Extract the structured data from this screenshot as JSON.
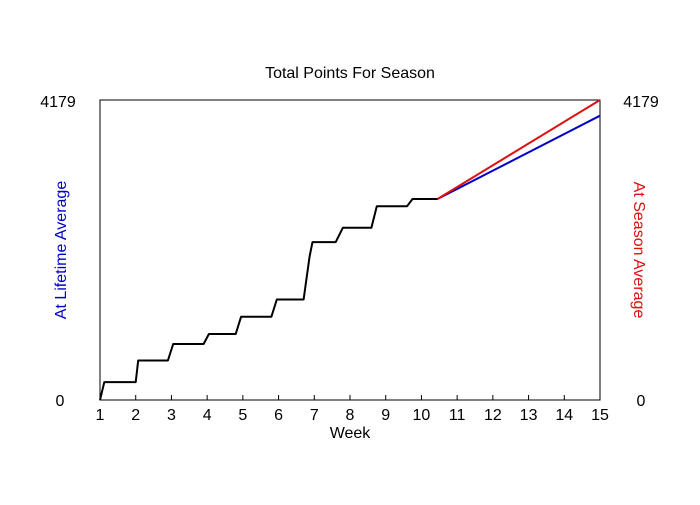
{
  "chart_data": {
    "type": "line",
    "title": "Total Points For Season",
    "xlabel": "Week",
    "ylabel_left": "At Lifetime Average",
    "ylabel_right": "At Season Average",
    "ylim": [
      0,
      4179
    ],
    "xlim": [
      1,
      15
    ],
    "x_ticks": [
      "1",
      "2",
      "3",
      "4",
      "5",
      "6",
      "7",
      "8",
      "9",
      "10",
      "11",
      "12",
      "13",
      "14",
      "15"
    ],
    "y_tick_labels_left": {
      "bottom": "0",
      "top": "4179"
    },
    "y_tick_labels_right": {
      "bottom": "0",
      "top": "4179"
    },
    "grid": false,
    "series": [
      {
        "color": "#000000",
        "points": [
          [
            1.0,
            0
          ],
          [
            1.12,
            250
          ],
          [
            2.0,
            250
          ],
          [
            2.07,
            550
          ],
          [
            2.9,
            550
          ],
          [
            3.05,
            780
          ],
          [
            3.9,
            780
          ],
          [
            4.05,
            920
          ],
          [
            4.8,
            920
          ],
          [
            4.95,
            1160
          ],
          [
            5.8,
            1160
          ],
          [
            5.95,
            1400
          ],
          [
            6.7,
            1400
          ],
          [
            6.87,
            2000
          ],
          [
            6.95,
            2200
          ],
          [
            7.6,
            2200
          ],
          [
            7.8,
            2400
          ],
          [
            8.6,
            2400
          ],
          [
            8.75,
            2700
          ],
          [
            9.6,
            2700
          ],
          [
            9.75,
            2800
          ],
          [
            10.45,
            2800
          ]
        ]
      },
      {
        "color": "#0000cc",
        "points": [
          [
            10.45,
            2800
          ],
          [
            15.0,
            3960
          ]
        ]
      },
      {
        "color": "#dd1111",
        "points": [
          [
            10.45,
            2800
          ],
          [
            15.0,
            4179
          ]
        ]
      }
    ]
  }
}
